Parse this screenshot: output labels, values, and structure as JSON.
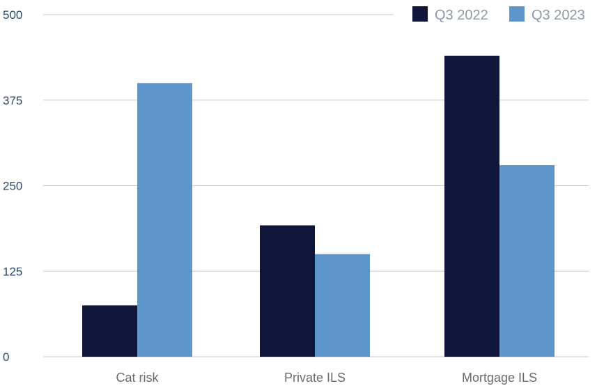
{
  "chart_data": {
    "type": "bar",
    "categories": [
      "Cat risk",
      "Private ILS",
      "Mortgage ILS"
    ],
    "series": [
      {
        "name": "Q3 2022",
        "values": [
          75,
          192,
          440
        ],
        "color": "#0f1639"
      },
      {
        "name": "Q3 2023",
        "values": [
          400,
          150,
          280
        ],
        "color": "#5e95cb"
      }
    ],
    "yticks": [
      0,
      125,
      250,
      375,
      500
    ],
    "ylim": [
      0,
      500
    ],
    "grid": true,
    "legend_position": "top-right",
    "title": "",
    "xlabel": "",
    "ylabel": ""
  }
}
